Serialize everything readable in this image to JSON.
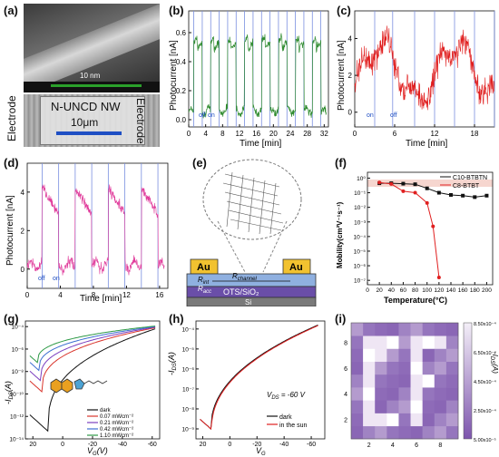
{
  "panels": {
    "a": {
      "label": "(a)",
      "scale_small": "10 nm",
      "nanowire": "N-UNCD NW",
      "scale_large": "10μm",
      "electrode_left": "Electrode",
      "electrode_right": "Electrode"
    },
    "b": {
      "label": "(b)",
      "ylabel": "Photocurrent [nA]",
      "xlabel": "Time [min]",
      "yticks": [
        "0.0",
        "0.2",
        "0.4",
        "0.6"
      ],
      "xticks": [
        "0",
        "4",
        "8",
        "12",
        "16",
        "20",
        "24",
        "28",
        "32"
      ],
      "on": "on",
      "off": "off"
    },
    "c": {
      "label": "(c)",
      "ylabel": "Photocurrent [nA]",
      "xlabel": "Time [min]",
      "yticks": [
        "0",
        "2",
        "4"
      ],
      "xticks": [
        "0",
        "6",
        "12",
        "18"
      ],
      "on": "on",
      "off": "off"
    },
    "d": {
      "label": "(d)",
      "ylabel": "Photocurrent [nA]",
      "xlabel": "Time [min]",
      "yticks": [
        "0",
        "2",
        "4"
      ],
      "xticks": [
        "0",
        "4",
        "8",
        "12",
        "16"
      ],
      "on": "on",
      "off": "off"
    },
    "e": {
      "label": "(e)",
      "au_left": "Au",
      "au_right": "Au",
      "r_int": "R",
      "r_int_sub": "int",
      "r_acc": "R",
      "r_acc_sub": "acc",
      "r_channel": "R",
      "r_channel_sub": "channel",
      "dielectric": "OTS/SiO₂",
      "substrate": "Si"
    },
    "f": {
      "label": "(f)",
      "ylabel": "Mobility(cm²V⁻¹s⁻¹)",
      "xlabel": "Temperature(°C)",
      "xticks": [
        "0",
        "20",
        "40",
        "60",
        "80",
        "100",
        "120",
        "140",
        "160",
        "180",
        "200"
      ],
      "yticks": [
        "10⁰",
        "10⁻¹",
        "10⁻²",
        "10⁻³",
        "10⁻⁴",
        "10⁻⁵",
        "10⁻⁶",
        "10⁻⁷"
      ]
    },
    "g": {
      "label": "(g)",
      "ylabel": "-I_DS(A)",
      "xlabel": "V_G(V)",
      "xticks": [
        "20",
        "0",
        "-20",
        "-40",
        "-60"
      ],
      "yticks": [
        "10⁻¹⁴",
        "10⁻¹²",
        "10⁻¹⁰",
        "10⁻⁸",
        "10⁻⁶",
        "10⁻⁴"
      ]
    },
    "h": {
      "label": "(h)",
      "ylabel": "-I_DS(A)",
      "xlabel": "V_G",
      "vds": "V_DS = -60 V",
      "xticks": [
        "20",
        "0",
        "-20",
        "-40",
        "-60"
      ],
      "yticks": [
        "10⁻⁹",
        "10⁻⁸",
        "10⁻⁷",
        "10⁻⁶",
        "10⁻⁵",
        "10⁻⁴"
      ]
    },
    "i": {
      "label": "(i)",
      "colorbar_label": "-I_DS(A)",
      "xticks": [
        "2",
        "4",
        "6",
        "8"
      ],
      "yticks": [
        "2",
        "4",
        "6",
        "8"
      ],
      "colorbar_ticks": [
        "8.50x10⁻⁴",
        "6.50x10⁻⁴",
        "4.50x10⁻⁴",
        "2.50x10⁻⁴",
        "5.00x10⁻⁵"
      ]
    }
  },
  "chart_data": [
    {
      "type": "line",
      "panel": "b",
      "xlabel": "Time [min]",
      "ylabel": "Photocurrent [nA]",
      "xlim": [
        0,
        33
      ],
      "ylim": [
        -0.05,
        0.75
      ],
      "switch_times": [
        1.2,
        3.2,
        5.2,
        7.2,
        9.2,
        11.2,
        13.2,
        15.2,
        17.2,
        19.2,
        21.2,
        23.2,
        25.2,
        27.2,
        29.2,
        31.2
      ],
      "on_level": 0.55,
      "off_level": 0.06,
      "color": "#2e8b2e"
    },
    {
      "type": "line",
      "panel": "c",
      "xlabel": "Time [min]",
      "ylabel": "Photocurrent [nA]",
      "xlim": [
        0,
        21
      ],
      "ylim": [
        -0.8,
        5.5
      ],
      "switch_times": [
        3,
        5.7,
        9,
        12,
        15,
        18,
        21
      ],
      "color": "#e01b1b"
    },
    {
      "type": "line",
      "panel": "d",
      "xlabel": "Time [min]",
      "ylabel": "Photocurrent [nA]",
      "xlim": [
        0,
        17
      ],
      "ylim": [
        -1,
        5.5
      ],
      "switch_times": [
        1.8,
        3.8,
        5.8,
        7.8,
        9.8,
        11.8,
        13.8,
        15.8
      ],
      "peak_level": 4.2,
      "off_level": 0.2,
      "color": "#e0399a"
    },
    {
      "type": "line",
      "panel": "f",
      "xlabel": "Temperature(°C)",
      "ylabel": "Mobility(cm²V⁻¹s⁻¹)",
      "xlim": [
        0,
        210
      ],
      "log_y": true,
      "ylim_exp": [
        -7.3,
        0.4
      ],
      "series": [
        {
          "name": "C10-BTBTN",
          "color": "#111111",
          "marker": "square",
          "x": [
            20,
            40,
            60,
            80,
            100,
            120,
            140,
            160,
            180,
            200
          ],
          "log10_y": [
            -0.35,
            -0.35,
            -0.38,
            -0.42,
            -0.7,
            -1.0,
            -1.15,
            -1.2,
            -1.3,
            -1.2
          ]
        },
        {
          "name": "C8-BTBT",
          "color": "#e02020",
          "marker": "circle",
          "x": [
            20,
            40,
            60,
            80,
            100,
            110,
            120
          ],
          "log10_y": [
            -0.3,
            -0.4,
            -0.9,
            -1.0,
            -1.7,
            -3.3,
            -6.8
          ]
        }
      ]
    },
    {
      "type": "line",
      "panel": "g",
      "xlabel": "V_G(V)",
      "ylabel": "-I_DS(A)",
      "xlim": [
        25,
        -65
      ],
      "log_y": true,
      "ylim_exp": [
        -14,
        -3.5
      ],
      "series": [
        {
          "name": "dark",
          "color": "#111111",
          "vmin": 10,
          "exp_min": -13.3,
          "exp_max": -4.2
        },
        {
          "name": "0.07 mWcm⁻²",
          "color": "#d9342b",
          "vmin": 14,
          "exp_min": -9.8,
          "exp_max": -4.1
        },
        {
          "name": "0.21 mWcm⁻²",
          "color": "#7b3fbf",
          "vmin": 15,
          "exp_min": -8.8,
          "exp_max": -4.05
        },
        {
          "name": "0.42 mWcm⁻²",
          "color": "#3d6fd1",
          "vmin": 16,
          "exp_min": -7.9,
          "exp_max": -4.0
        },
        {
          "name": "1.10 mWcm⁻²",
          "color": "#2e9a47",
          "vmin": 17,
          "exp_min": -7.2,
          "exp_max": -3.95
        }
      ]
    },
    {
      "type": "line",
      "panel": "h",
      "xlabel": "V_G",
      "ylabel": "-I_DS(A)",
      "xlim": [
        25,
        -70
      ],
      "log_y": true,
      "ylim_exp": [
        -9.5,
        -3.6
      ],
      "series": [
        {
          "name": "dark",
          "color": "#111111"
        },
        {
          "name": "in the sun",
          "color": "#e02020"
        }
      ]
    },
    {
      "type": "heatmap",
      "panel": "i",
      "xlim": [
        0.5,
        9.5
      ],
      "ylim": [
        0.5,
        9.5
      ],
      "colorbar_range": [
        5e-05,
        0.00085
      ],
      "grid_note": "letters I and F shown as bright pixels",
      "low_color": "#8e6bb8",
      "high_color": "#f4eff8"
    }
  ]
}
